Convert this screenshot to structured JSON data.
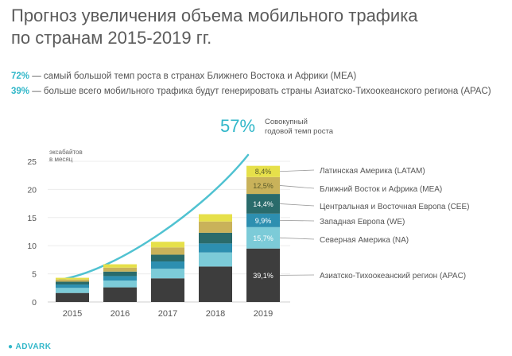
{
  "header": {
    "title_line1": "Прогноз увеличения объема мобильного трафика",
    "title_line2": "по странам 2015-2019 гг."
  },
  "stats": [
    {
      "pct": "72%",
      "text": " — самый большой темп роста в странах Ближнего Востока и Африки (MEA)"
    },
    {
      "pct": "39%",
      "text": " — больше всего мобильного трафика будут генерировать страны Азиатско-Тихоокеанского региона (APAC)"
    }
  ],
  "callout": {
    "value": "57%",
    "line1": "Совокупный",
    "line2": "годовой темп роста"
  },
  "footer": {
    "brand": "ADVARK"
  },
  "colors": {
    "APAC": "#3d3d3d",
    "NA": "#7ccbd8",
    "WE": "#2d8fb0",
    "CEE": "#2a6b6b",
    "MEA": "#c9b25a",
    "LATAM": "#e6e04a",
    "accent": "#31b7c9"
  },
  "chart_data": {
    "type": "bar",
    "stacked": true,
    "ylabel": "эксабайтов в месяц",
    "ylim": [
      0,
      25
    ],
    "yticks": [
      0,
      5,
      10,
      15,
      20,
      25
    ],
    "categories": [
      "2015",
      "2016",
      "2017",
      "2018",
      "2019"
    ],
    "series": [
      {
        "key": "APAC",
        "name": "Азиатско-Тихоокеанский регион (APAC)",
        "values": [
          1.6,
          2.6,
          4.2,
          6.3,
          9.5
        ],
        "label_2019": "39,1%"
      },
      {
        "key": "NA",
        "name": "Северная Америка (NA)",
        "values": [
          0.9,
          1.2,
          1.7,
          2.5,
          3.8
        ],
        "label_2019": "15,7%"
      },
      {
        "key": "WE",
        "name": "Западная Европа (WE)",
        "values": [
          0.6,
          0.8,
          1.3,
          1.6,
          2.4
        ],
        "label_2019": "9,9%"
      },
      {
        "key": "CEE",
        "name": "Центральная и Восточная Европа (CEE)",
        "values": [
          0.5,
          0.8,
          1.2,
          1.9,
          3.5
        ],
        "label_2019": "14,4%"
      },
      {
        "key": "MEA",
        "name": "Ближний Восток и Африка (MEA)",
        "values": [
          0.4,
          0.7,
          1.3,
          2.0,
          3.0
        ],
        "label_2019": "12,5%"
      },
      {
        "key": "LATAM",
        "name": "Латинская Америка (LATAM)",
        "values": [
          0.3,
          0.6,
          1.0,
          1.3,
          2.0
        ],
        "label_2019": "8,4%"
      }
    ]
  }
}
